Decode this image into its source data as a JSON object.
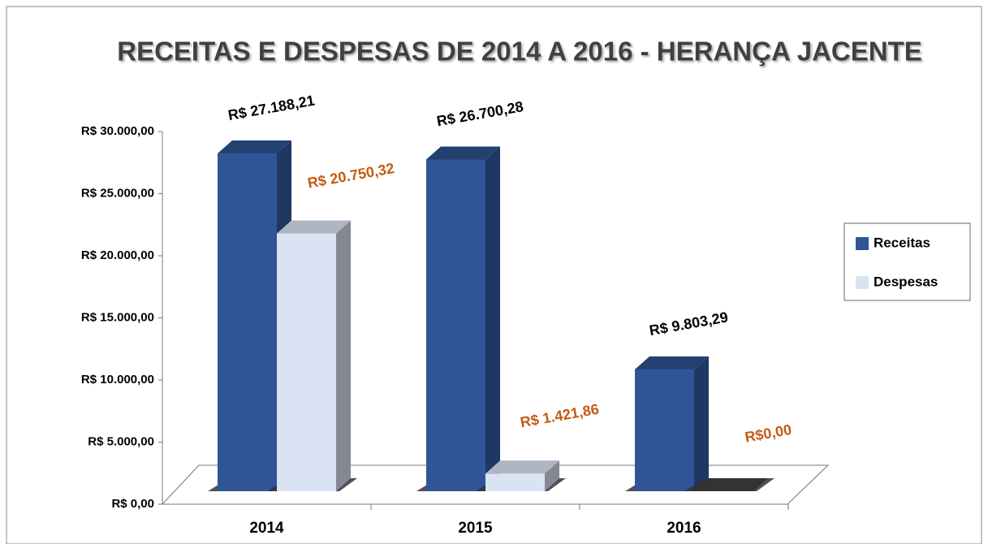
{
  "chart_data": {
    "type": "bar3d",
    "title": "RECEITAS E DESPESAS DE 2014 A 2016 - HERANÇA JACENTE",
    "categories": [
      "2014",
      "2015",
      "2016"
    ],
    "series": [
      {
        "name": "Receitas",
        "color": "#2f5597",
        "values": [
          27188.21,
          26700.28,
          9803.29
        ],
        "value_labels": [
          "R$ 27.188,21",
          "R$ 26.700,28",
          "R$ 9.803,29"
        ],
        "label_color": "#000000"
      },
      {
        "name": "Despesas",
        "color": "#dae3f3",
        "values": [
          20750.32,
          1421.86,
          0
        ],
        "value_labels": [
          "R$ 20.750,32",
          "R$ 1.421,86",
          "R$0,00"
        ],
        "label_color": "#c55a11"
      }
    ],
    "ylim": [
      0,
      30000
    ],
    "yticks": [
      {
        "value": 0,
        "label": "R$ 0,00"
      },
      {
        "value": 5000,
        "label": "R$ 5.000,00"
      },
      {
        "value": 10000,
        "label": "R$ 10.000,00"
      },
      {
        "value": 15000,
        "label": "R$ 15.000,00"
      },
      {
        "value": 20000,
        "label": "R$ 20.000,00"
      },
      {
        "value": 25000,
        "label": "R$ 25.000,00"
      },
      {
        "value": 30000,
        "label": "R$ 30.000,00"
      }
    ],
    "legend": "right"
  }
}
